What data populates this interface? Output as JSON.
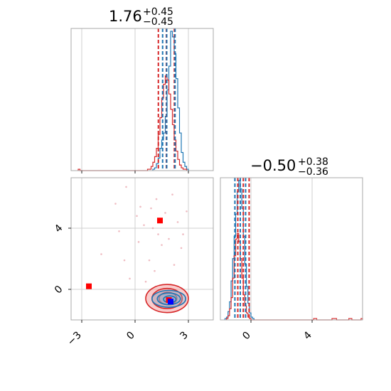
{
  "colors": {
    "blue": "#1f77b4",
    "red": "#d62728",
    "marker_red": "#ff0000",
    "marker_blue": "#0000ff",
    "contour_fill_red": "#f4a3a3",
    "contour_fill_blue": "#7fb2d8"
  },
  "titles": [
    {
      "value": "1.76",
      "plus": "+0.45",
      "minus": "−0.45"
    },
    {
      "value": "−0.50",
      "plus": "+0.38",
      "minus": "−0.36"
    }
  ],
  "ticks": {
    "p1_x": [
      {
        "value": -3,
        "label": "−3"
      },
      {
        "value": 0,
        "label": "0"
      },
      {
        "value": 3,
        "label": "3"
      }
    ],
    "p1_y": [
      {
        "value": 0,
        "label": "0"
      },
      {
        "value": 4,
        "label": "4"
      }
    ],
    "p2_x": [
      {
        "value": 0,
        "label": "0"
      },
      {
        "value": 4,
        "label": "4"
      }
    ]
  },
  "chart_data": {
    "type": "corner",
    "parameters": [
      "p1",
      "p2"
    ],
    "ranges": {
      "p1": [
        -3.6,
        4.4
      ],
      "p2": [
        -2.0,
        7.3
      ]
    },
    "grid": true,
    "marginal_p1": {
      "bin_width": 0.1,
      "x_start": -3.6,
      "series": [
        {
          "name": "",
          "color_key": "blue",
          "start_x": 1.0,
          "counts": [
            1,
            2,
            5,
            9,
            16,
            22,
            27,
            39,
            58,
            75,
            100,
            96,
            84,
            66,
            45,
            27,
            13,
            6,
            3,
            1
          ]
        },
        {
          "name": "",
          "color_key": "red",
          "start_x": -3.2,
          "counts": [
            1,
            0,
            0,
            0,
            0,
            0,
            0,
            0,
            0,
            0,
            0,
            0,
            0,
            0,
            0,
            0,
            0,
            0,
            0,
            0,
            0,
            0,
            0,
            0,
            0,
            0,
            0,
            0,
            0,
            0,
            0,
            0,
            0,
            0,
            0,
            0,
            0,
            0,
            0,
            1,
            1,
            3,
            6,
            10,
            16,
            26,
            38,
            52,
            62,
            68,
            65,
            55,
            44,
            33,
            22,
            14,
            8,
            4,
            2,
            1,
            1
          ]
        }
      ],
      "quantiles": [
        {
          "color_key": "red",
          "values": [
            1.31,
            1.76,
            2.21
          ]
        },
        {
          "color_key": "blue",
          "values": [
            1.55,
            1.78,
            2.25
          ]
        }
      ]
    },
    "marginal_p2": {
      "bin_width": 0.1,
      "series": [
        {
          "name": "",
          "color_key": "blue",
          "start_x": -1.7,
          "counts": [
            1,
            2,
            6,
            13,
            28,
            44,
            60,
            76,
            92,
            100,
            94,
            80,
            60,
            40,
            24,
            12,
            5,
            2,
            1
          ]
        },
        {
          "name": "",
          "color_key": "red",
          "start_x": -1.6,
          "counts": [
            1,
            3,
            8,
            16,
            30,
            46,
            58,
            62,
            56,
            44,
            30,
            18,
            10,
            5,
            2,
            1,
            0,
            0,
            0,
            0,
            0,
            0,
            0,
            0,
            0,
            0,
            0,
            0,
            0,
            0,
            0,
            0,
            0,
            0,
            0,
            0,
            0,
            0,
            0,
            0,
            0,
            0,
            0,
            0,
            0,
            0,
            0,
            0,
            0,
            0,
            0,
            0,
            0,
            0,
            0,
            0,
            0,
            1,
            1,
            0,
            0,
            0,
            0,
            0,
            0,
            0,
            0,
            0,
            0,
            1,
            1,
            1,
            0,
            0,
            0,
            0,
            0,
            0,
            0,
            0,
            1,
            1,
            0,
            0,
            0,
            0,
            0,
            0,
            1
          ]
        }
      ],
      "quantiles": [
        {
          "color_key": "red",
          "values": [
            -0.86,
            -0.5,
            -0.12
          ]
        },
        {
          "color_key": "blue",
          "values": [
            -1.05,
            -0.7,
            -0.35
          ]
        }
      ]
    },
    "joint": {
      "markers": [
        {
          "x": -2.6,
          "y": 0.2,
          "color_key": "marker_red"
        },
        {
          "x": 1.4,
          "y": 4.5,
          "color_key": "marker_red"
        },
        {
          "x": 1.9,
          "y": -0.7,
          "color_key": "marker_red"
        },
        {
          "x": 2.0,
          "y": -0.8,
          "color_key": "marker_blue"
        }
      ],
      "contours": [
        {
          "color_key": "red",
          "cx": 1.8,
          "cy": -0.6,
          "rx": 1.2,
          "ry": 0.92,
          "filled": true
        },
        {
          "color_key": "red",
          "cx": 1.8,
          "cy": -0.6,
          "rx": 0.85,
          "ry": 0.66,
          "filled": true
        },
        {
          "color_key": "red",
          "cx": 1.85,
          "cy": -0.6,
          "rx": 0.5,
          "ry": 0.4,
          "filled": true
        },
        {
          "color_key": "blue",
          "cx": 1.9,
          "cy": -0.62,
          "rx": 0.95,
          "ry": 0.55,
          "filled": false
        },
        {
          "color_key": "blue",
          "cx": 1.9,
          "cy": -0.62,
          "rx": 0.65,
          "ry": 0.38,
          "filled": false
        },
        {
          "color_key": "blue",
          "cx": 1.95,
          "cy": -0.65,
          "rx": 0.35,
          "ry": 0.22,
          "filled": false
        }
      ],
      "outliers": [
        [
          -0.5,
          6.7
        ],
        [
          -1.1,
          5.6
        ],
        [
          0.3,
          5.4
        ],
        [
          0.9,
          5.3
        ],
        [
          1.2,
          5.9
        ],
        [
          2.1,
          6.2
        ],
        [
          0.5,
          4.2
        ],
        [
          1.0,
          4.0
        ],
        [
          2.4,
          4.4
        ],
        [
          2.7,
          3.6
        ],
        [
          0.2,
          3.1
        ],
        [
          1.5,
          2.9
        ],
        [
          1.9,
          3.3
        ],
        [
          -0.9,
          3.8
        ],
        [
          -1.9,
          2.3
        ],
        [
          0.8,
          1.9
        ],
        [
          2.2,
          1.6
        ],
        [
          1.1,
          1.2
        ],
        [
          -0.3,
          0.7
        ],
        [
          0.6,
          0.5
        ],
        [
          2.6,
          2.7
        ],
        [
          1.7,
          5.0
        ],
        [
          0.1,
          4.8
        ],
        [
          2.9,
          5.1
        ],
        [
          1.3,
          3.6
        ],
        [
          -0.6,
          1.9
        ]
      ]
    }
  }
}
